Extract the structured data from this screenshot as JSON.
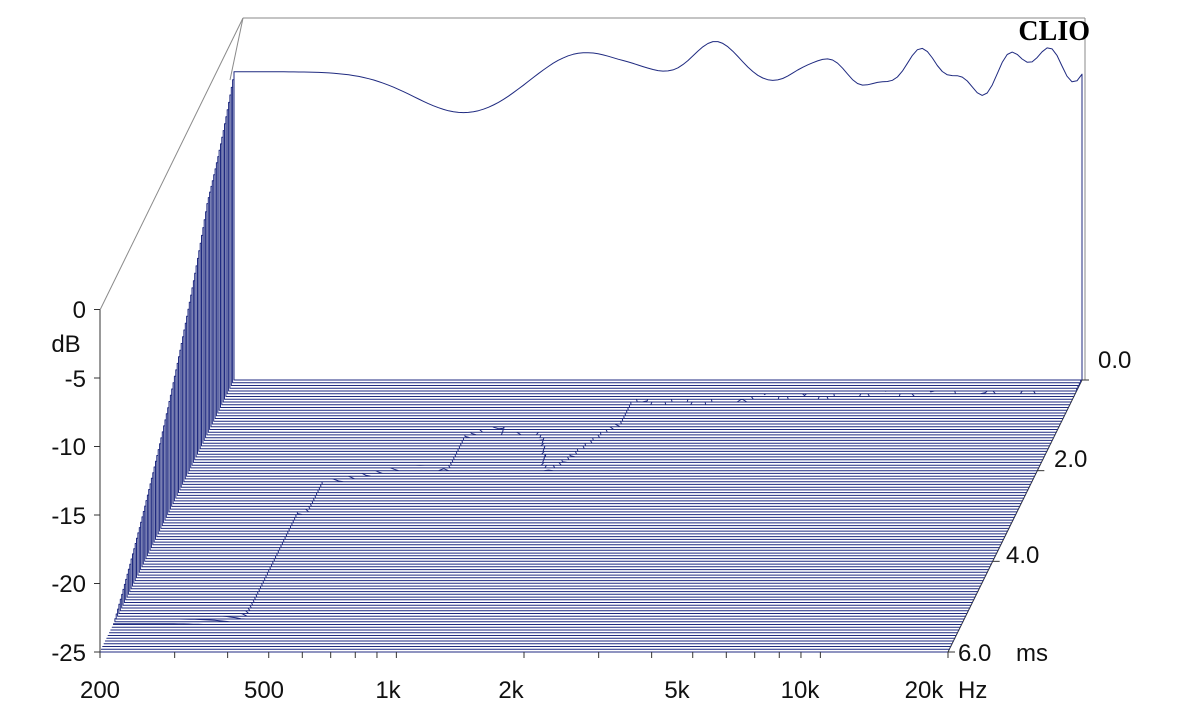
{
  "chart_data": {
    "type": "waterfall",
    "brand": "CLIO",
    "y_axis": {
      "unit": "dB",
      "range": [
        -25,
        0
      ],
      "ticks": [
        "0",
        "-5",
        "-10",
        "-15",
        "-20",
        "-25"
      ]
    },
    "x_axis": {
      "unit": "Hz",
      "scale": "log",
      "range": [
        200,
        20000
      ],
      "ticks": [
        "200",
        "500",
        "1k",
        "2k",
        "5k",
        "10k",
        "20k"
      ]
    },
    "z_axis": {
      "unit": "ms",
      "range": [
        0,
        6
      ],
      "ticks": [
        "0.0",
        "2.0",
        "4.0",
        "6.0"
      ]
    },
    "slice_count": 100,
    "colors": {
      "trace": "#1f2a80",
      "fill": "#ffffff",
      "frame": "#8a8a8a",
      "text": "#111111"
    }
  }
}
